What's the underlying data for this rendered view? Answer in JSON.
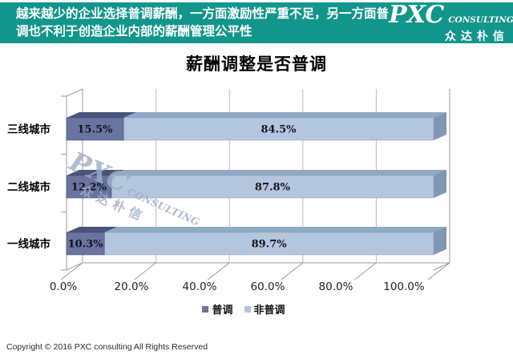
{
  "header": {
    "text_line1": "越来越少的企业选择普调薪酬，一方面激励性严重不足，另一方面普",
    "text_line2": "调也不利于创造企业内部的薪酬管理公平性",
    "bg_color": "#12968b",
    "logo": {
      "main": "PXC",
      "sub": "CONSULTING",
      "chinese": "众达朴信"
    }
  },
  "title": "薪酬调整是否普调",
  "chart_data": {
    "type": "bar",
    "orientation": "horizontal-stacked-3d",
    "title": "薪酬调整是否普调",
    "categories": [
      "三线城市",
      "二线城市",
      "一线城市"
    ],
    "series": [
      {
        "name": "普调",
        "values": [
          15.5,
          12.2,
          10.3
        ],
        "color": "#6a74a1",
        "top_color": "#4b537c",
        "stroke": "#3f4668"
      },
      {
        "name": "非普调",
        "values": [
          84.5,
          87.8,
          89.7
        ],
        "color": "#b3c6dd",
        "top_color": "#90a8c4",
        "side_color": "#8096b4",
        "stroke": "#8ba0bc"
      }
    ],
    "value_labels": [
      [
        "15.5%",
        "84.5%"
      ],
      [
        "12.2%",
        "87.8%"
      ],
      [
        "10.3%",
        "89.7%"
      ]
    ],
    "x_ticks": [
      "0.0%",
      "20.0%",
      "40.0%",
      "60.0%",
      "80.0%",
      "100.0%"
    ],
    "xlim": [
      0,
      100
    ],
    "grid": true,
    "legend": [
      "普调",
      "非普调"
    ],
    "legend_position": "bottom",
    "grid_color": "#bdbdbd",
    "axis_color": "#9b9b9b",
    "label_color": "#14141e"
  },
  "watermark": {
    "main": "PXC",
    "sub": "CONSULTING",
    "chinese": "众达朴信"
  },
  "footer": "Copyright © 2016  PXC consulting All Rights Reserved"
}
